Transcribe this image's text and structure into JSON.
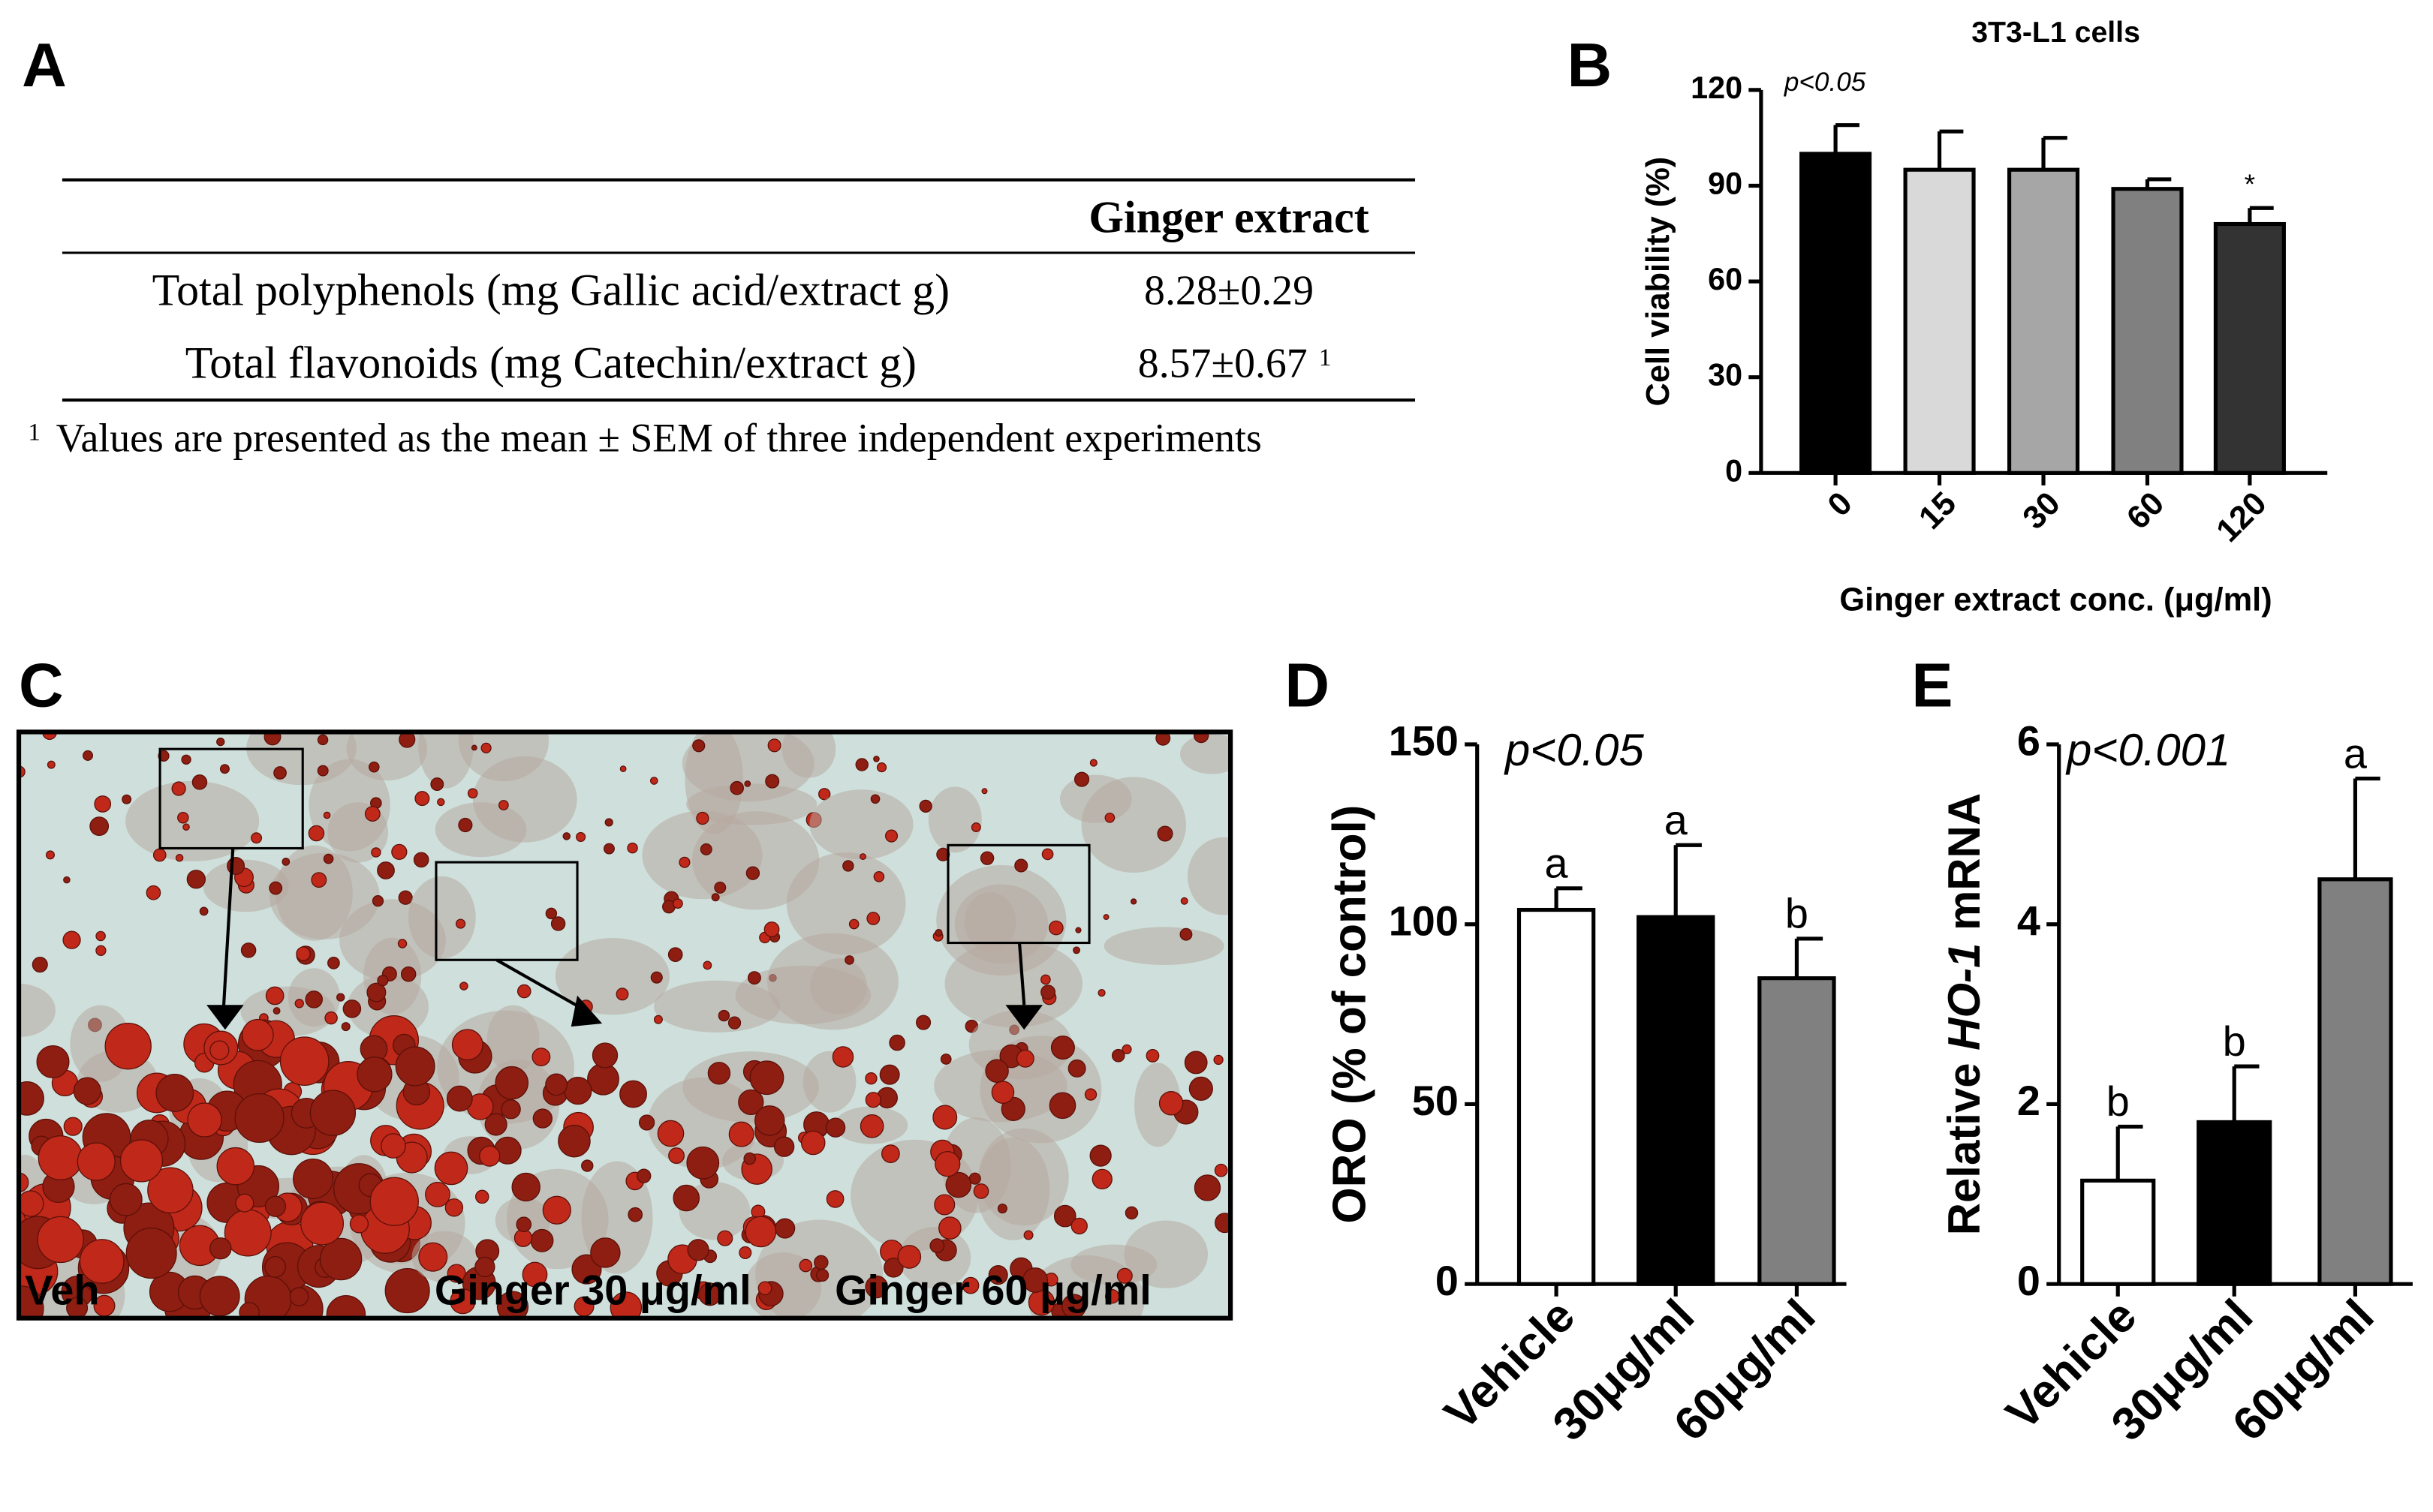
{
  "panel_labels": [
    "A",
    "B",
    "C",
    "D",
    "E"
  ],
  "table": {
    "header": "Ginger extract",
    "rows": [
      [
        "Total polyphenols (mg Gallic acid/extract g)",
        "8.28±0.29"
      ],
      [
        "Total flavonoids (mg Catechin/extract g)",
        "8.57±0.67"
      ]
    ],
    "footnote": {
      "mark": "1",
      "text": "Values are presented as the mean ± SEM of three independent experiments"
    }
  },
  "images": {
    "labels": [
      "Veh",
      "Ginger 30 μg/ml",
      "Ginger 60 μg/ml"
    ]
  },
  "chart_data": [
    {
      "type": "bar",
      "title": "3T3-L1 cells",
      "annotation": "p<0.05",
      "ylabel": "Cell viability (%)",
      "xlabel": "Ginger extract conc. (μg/ml)",
      "categories": [
        "0",
        "15",
        "30",
        "60",
        "120"
      ],
      "values": [
        100,
        95,
        95,
        89,
        78
      ],
      "errors": [
        9,
        12,
        10,
        3,
        5
      ],
      "colors": [
        "#000000",
        "#d9d9d9",
        "#a6a6a6",
        "#808080",
        "#333333"
      ],
      "bar_annotations": [
        null,
        null,
        null,
        null,
        "*"
      ],
      "ylim": [
        0,
        120
      ],
      "yticks": [
        0,
        30,
        60,
        90,
        120
      ]
    },
    {
      "type": "bar",
      "annotation": "p<0.05",
      "ylabel": "ORO (% of control)",
      "categories": [
        "Vehicle",
        "30μg/ml",
        "60μg/ml"
      ],
      "values": [
        104,
        102,
        85
      ],
      "errors": [
        6,
        20,
        11
      ],
      "colors": [
        "#ffffff",
        "#000000",
        "#808080"
      ],
      "bar_annotations": [
        "a",
        "a",
        "b"
      ],
      "ylim": [
        0,
        150
      ],
      "yticks": [
        0,
        50,
        100,
        150
      ]
    },
    {
      "type": "bar",
      "annotation": "p<0.001",
      "ylabel": [
        "Relative ",
        "HO-1",
        " mRNA"
      ],
      "categories": [
        "Vehicle",
        "30μg/ml",
        "60μg/ml"
      ],
      "values": [
        1.15,
        1.8,
        4.5
      ],
      "errors": [
        0.6,
        0.62,
        1.12
      ],
      "colors": [
        "#ffffff",
        "#000000",
        "#808080"
      ],
      "bar_annotations": [
        "b",
        "b",
        "a"
      ],
      "ylim": [
        0,
        6
      ],
      "yticks": [
        0,
        2,
        4,
        6
      ]
    }
  ]
}
